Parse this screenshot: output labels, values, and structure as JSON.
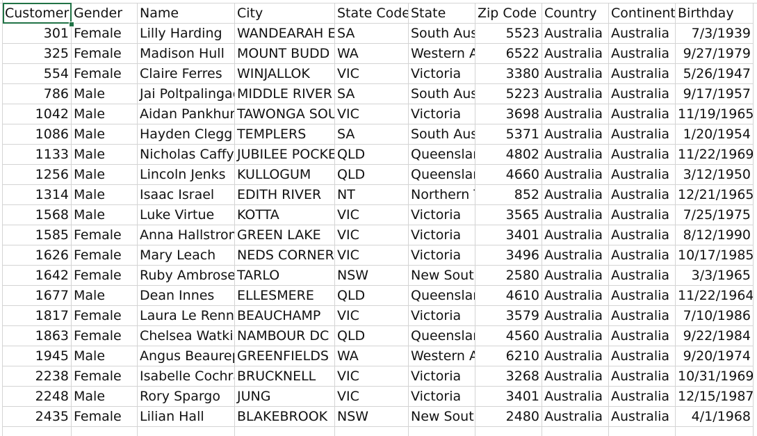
{
  "sheet": {
    "headers": [
      "Customer",
      "Gender",
      "Name",
      "City",
      "State Code",
      "State",
      "Zip Code",
      "Country",
      "Continent",
      "Birthday"
    ],
    "rows": [
      [
        "301",
        "Female",
        "Lilly Harding",
        "WANDEARAH E",
        "SA",
        "South Aus",
        "5523",
        "Australia",
        "Australia",
        "7/3/1939"
      ],
      [
        "325",
        "Female",
        "Madison Hull",
        "MOUNT BUDD",
        "WA",
        "Western A",
        "6522",
        "Australia",
        "Australia",
        "9/27/1979"
      ],
      [
        "554",
        "Female",
        "Claire Ferres",
        "WINJALLOK",
        "VIC",
        "Victoria",
        "3380",
        "Australia",
        "Australia",
        "5/26/1947"
      ],
      [
        "786",
        "Male",
        "Jai Poltpalingac",
        "MIDDLE RIVER",
        "SA",
        "South Aus",
        "5223",
        "Australia",
        "Australia",
        "9/17/1957"
      ],
      [
        "1042",
        "Male",
        "Aidan Pankhurs",
        "TAWONGA SOU",
        "VIC",
        "Victoria",
        "3698",
        "Australia",
        "Australia",
        "11/19/1965"
      ],
      [
        "1086",
        "Male",
        "Hayden Clegg",
        "TEMPLERS",
        "SA",
        "South Aus",
        "5371",
        "Australia",
        "Australia",
        "1/20/1954"
      ],
      [
        "1133",
        "Male",
        "Nicholas Caffyr",
        "JUBILEE POCKET",
        "QLD",
        "Queenslar",
        "4802",
        "Australia",
        "Australia",
        "11/22/1969"
      ],
      [
        "1256",
        "Male",
        "Lincoln Jenks",
        "KULLOGUM",
        "QLD",
        "Queenslar",
        "4660",
        "Australia",
        "Australia",
        "3/12/1950"
      ],
      [
        "1314",
        "Male",
        "Isaac Israel",
        "EDITH RIVER",
        "NT",
        "Northern T",
        "852",
        "Australia",
        "Australia",
        "12/21/1965"
      ],
      [
        "1568",
        "Male",
        "Luke Virtue",
        "KOTTA",
        "VIC",
        "Victoria",
        "3565",
        "Australia",
        "Australia",
        "7/25/1975"
      ],
      [
        "1585",
        "Female",
        "Anna Hallstrom",
        "GREEN LAKE",
        "VIC",
        "Victoria",
        "3401",
        "Australia",
        "Australia",
        "8/12/1990"
      ],
      [
        "1626",
        "Female",
        "Mary Leach",
        "NEDS CORNER",
        "VIC",
        "Victoria",
        "3496",
        "Australia",
        "Australia",
        "10/17/1985"
      ],
      [
        "1642",
        "Female",
        "Ruby Ambrose",
        "TARLO",
        "NSW",
        "New South",
        "2580",
        "Australia",
        "Australia",
        "3/3/1965"
      ],
      [
        "1677",
        "Male",
        "Dean Innes",
        "ELLESMERE",
        "QLD",
        "Queenslar",
        "4610",
        "Australia",
        "Australia",
        "11/22/1964"
      ],
      [
        "1817",
        "Female",
        "Laura Le Renne",
        "BEAUCHAMP",
        "VIC",
        "Victoria",
        "3579",
        "Australia",
        "Australia",
        "7/10/1986"
      ],
      [
        "1863",
        "Female",
        "Chelsea Watkir",
        "NAMBOUR DC",
        "QLD",
        "Queenslar",
        "4560",
        "Australia",
        "Australia",
        "9/22/1984"
      ],
      [
        "1945",
        "Male",
        "Angus Beaurep",
        "GREENFIELDS",
        "WA",
        "Western A",
        "6210",
        "Australia",
        "Australia",
        "9/20/1974"
      ],
      [
        "2238",
        "Female",
        "Isabelle Cochra",
        "BRUCKNELL",
        "VIC",
        "Victoria",
        "3268",
        "Australia",
        "Australia",
        "10/31/1969"
      ],
      [
        "2248",
        "Male",
        "Rory Spargo",
        "JUNG",
        "VIC",
        "Victoria",
        "3401",
        "Australia",
        "Australia",
        "12/15/1987"
      ],
      [
        "2435",
        "Female",
        "Lilian Hall",
        "BLAKEBROOK",
        "NSW",
        "New South",
        "2480",
        "Australia",
        "Australia",
        "4/1/1968"
      ]
    ]
  }
}
